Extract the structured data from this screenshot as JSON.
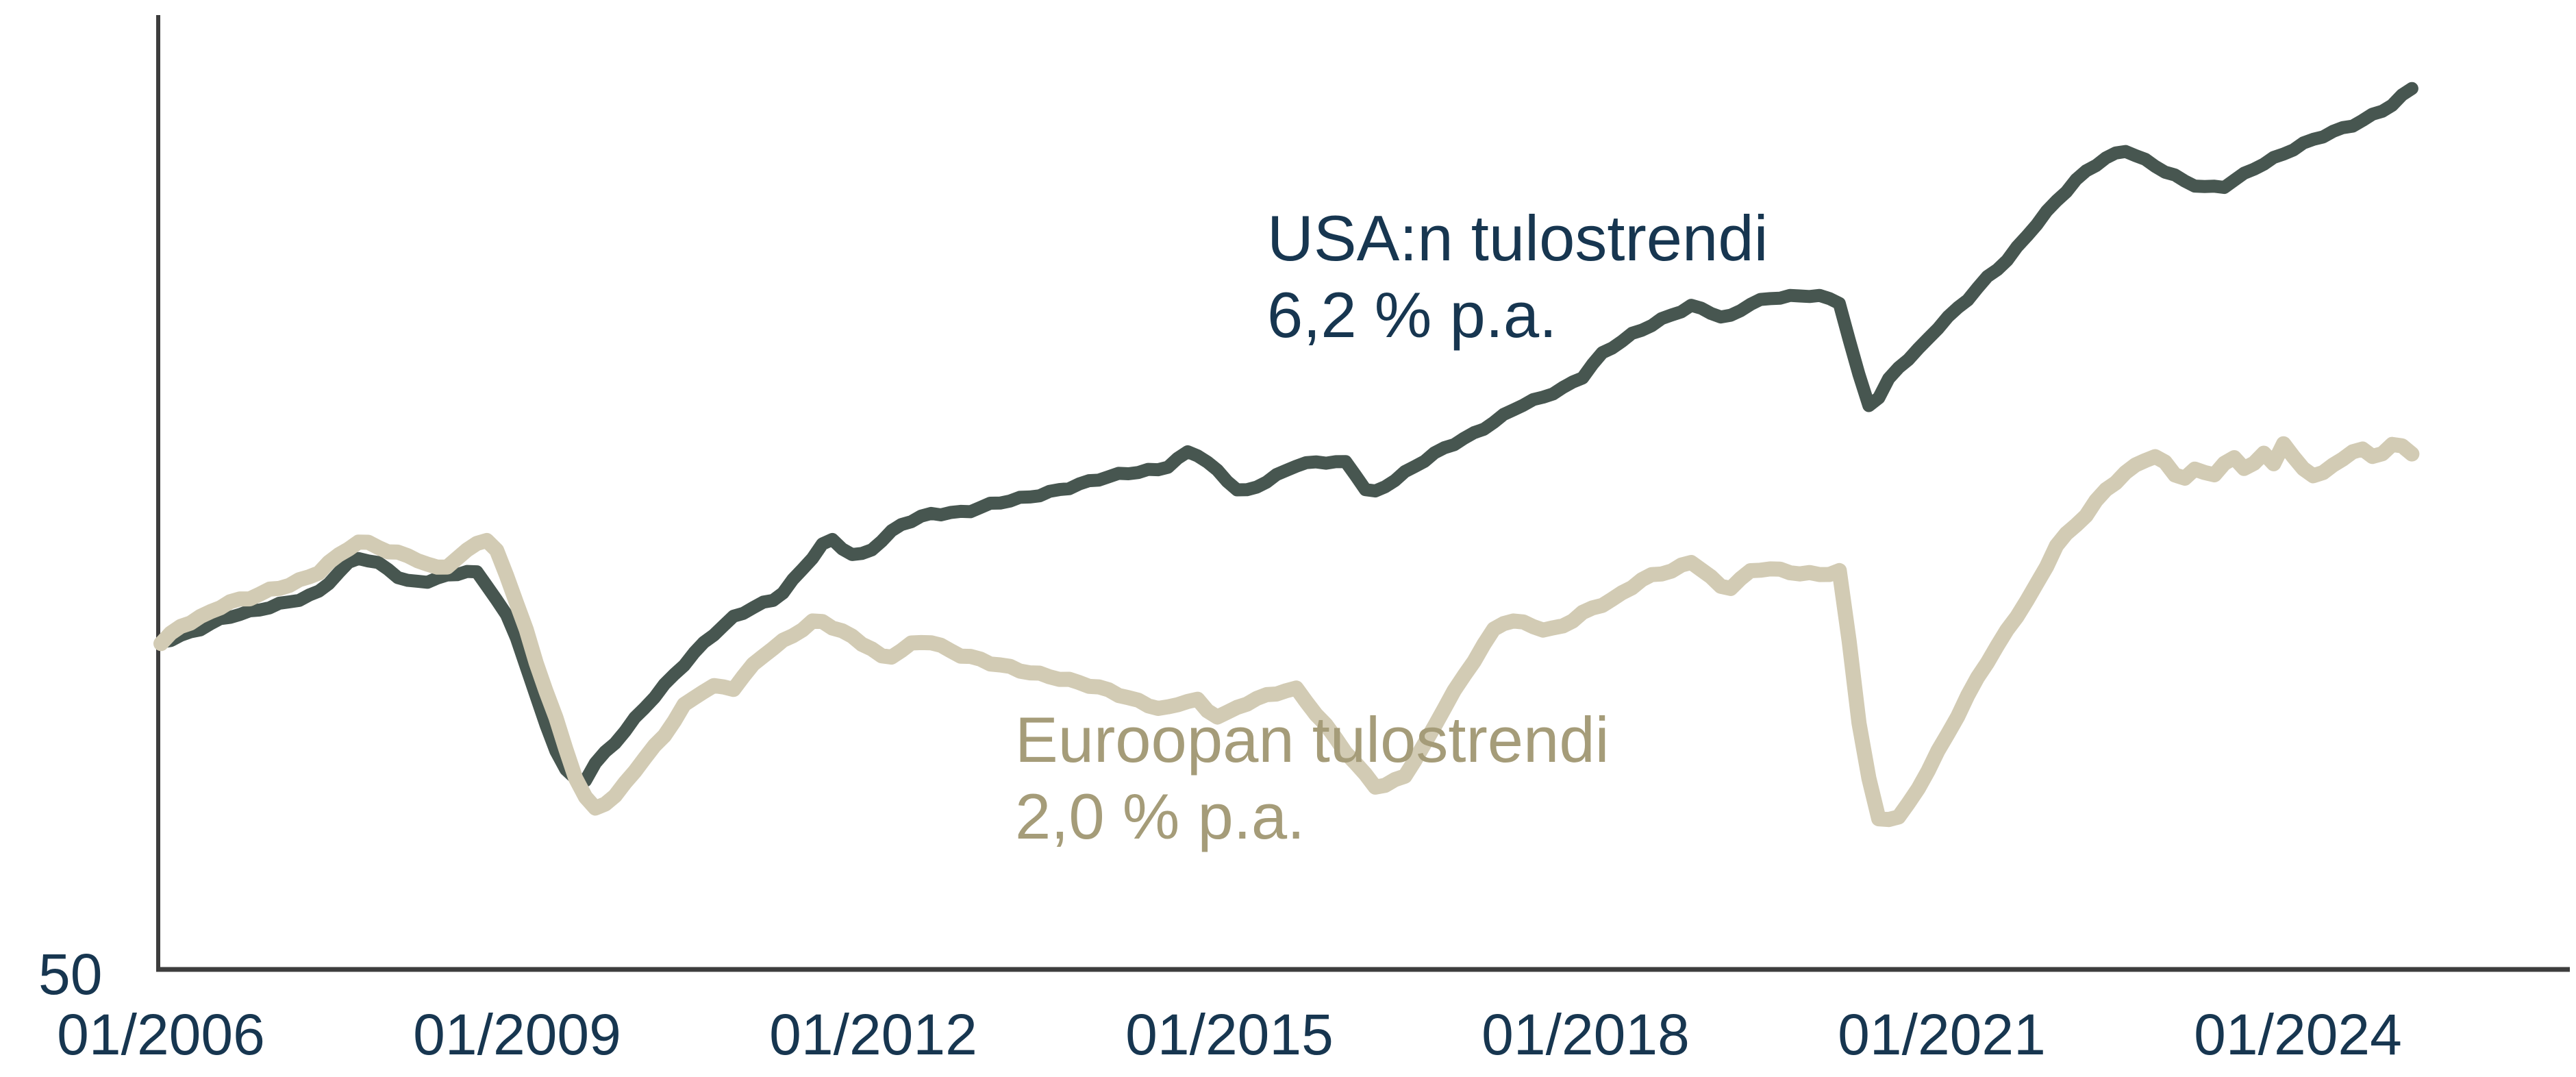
{
  "page": {
    "background_color": "#ffffff",
    "title": ""
  },
  "colors": {
    "axis_line": "#3d3d3d",
    "tick_text": "#173650",
    "usa_line": "#475650",
    "usa_text": "#173650",
    "europe_line": "#d2cbb4",
    "europe_text": "#a59c79"
  },
  "chart_data": {
    "type": "line",
    "title": "",
    "xlabel": "",
    "ylabel": "",
    "grid": false,
    "legend_position": "inline-annotations",
    "x_axis": {
      "tick_labels": [
        "01/2006",
        "01/2009",
        "01/2012",
        "01/2015",
        "01/2018",
        "01/2021",
        "01/2024"
      ],
      "tick_positions": [
        2006,
        2009,
        2012,
        2015,
        2018,
        2021,
        2024
      ],
      "range": [
        2006.0,
        2025.0
      ]
    },
    "y_axis": {
      "tick_labels": [
        "50"
      ],
      "bottom_value": 50,
      "scale": "log",
      "start_index": 100
    },
    "series": [
      {
        "name": "USA",
        "annotation_line1": "USA:n tulostrendi",
        "annotation_line2": "6,2 % p.a.",
        "color": "#475650",
        "label_color": "#173650",
        "stroke_width": 19,
        "points": [
          [
            2006.0,
            100.4
          ],
          [
            2006.16,
            101.8
          ],
          [
            2006.36,
            103.8
          ],
          [
            2006.55,
            105.8
          ],
          [
            2006.74,
            106.8
          ],
          [
            2006.93,
            108.4
          ],
          [
            2007.13,
            110.0
          ],
          [
            2007.32,
            111.6
          ],
          [
            2007.51,
            116.6
          ],
          [
            2007.64,
            120.3
          ],
          [
            2007.8,
            119.0
          ],
          [
            2007.89,
            118.1
          ],
          [
            2008.05,
            114.5
          ],
          [
            2008.28,
            114.5
          ],
          [
            2008.44,
            115.8
          ],
          [
            2008.59,
            116.6
          ],
          [
            2008.68,
            116.2
          ],
          [
            2008.87,
            108.4
          ],
          [
            2008.97,
            103.4
          ],
          [
            2009.07,
            96.1
          ],
          [
            2009.16,
            89.3
          ],
          [
            2009.26,
            83.0
          ],
          [
            2009.36,
            78.0
          ],
          [
            2009.45,
            74.8
          ],
          [
            2009.57,
            74.6
          ],
          [
            2009.65,
            77.3
          ],
          [
            2009.84,
            81.5
          ],
          [
            2010.03,
            86.3
          ],
          [
            2010.41,
            95.7
          ],
          [
            2010.62,
            101.5
          ],
          [
            2010.82,
            106.0
          ],
          [
            2010.99,
            108.3
          ],
          [
            2011.19,
            110.0
          ],
          [
            2011.39,
            116.6
          ],
          [
            2011.6,
            125.0
          ],
          [
            2011.63,
            125.6
          ],
          [
            2011.86,
            120.4
          ],
          [
            2012.0,
            122.7
          ],
          [
            2012.23,
            128.9
          ],
          [
            2012.49,
            132.3
          ],
          [
            2012.78,
            132.8
          ],
          [
            2013.0,
            134.7
          ],
          [
            2013.26,
            136.5
          ],
          [
            2013.59,
            139.5
          ],
          [
            2013.88,
            142.0
          ],
          [
            2014.16,
            144.1
          ],
          [
            2014.45,
            145.8
          ],
          [
            2014.68,
            151.6
          ],
          [
            2014.88,
            145.1
          ],
          [
            2015.1,
            137.8
          ],
          [
            2015.32,
            142.0
          ],
          [
            2015.55,
            146.7
          ],
          [
            2015.78,
            147.4
          ],
          [
            2016.0,
            147.2
          ],
          [
            2016.18,
            137.5
          ],
          [
            2016.47,
            144.1
          ],
          [
            2016.76,
            150.7
          ],
          [
            2017.05,
            156.7
          ],
          [
            2017.24,
            161.4
          ],
          [
            2017.43,
            166.3
          ],
          [
            2017.62,
            168.8
          ],
          [
            2017.82,
            172.8
          ],
          [
            2018.0,
            178.1
          ],
          [
            2018.1,
            185.0
          ],
          [
            2018.2,
            188.4
          ],
          [
            2018.39,
            193.7
          ],
          [
            2018.59,
            198.4
          ],
          [
            2018.78,
            203.4
          ],
          [
            2018.89,
            206.2
          ],
          [
            2019.03,
            204.5
          ],
          [
            2019.18,
            200.3
          ],
          [
            2019.36,
            206.2
          ],
          [
            2019.55,
            209.2
          ],
          [
            2019.74,
            210.3
          ],
          [
            2019.93,
            211.5
          ],
          [
            2020.15,
            207.7
          ],
          [
            2020.25,
            185.0
          ],
          [
            2020.34,
            172.0
          ],
          [
            2020.41,
            163.9
          ],
          [
            2020.51,
            172.8
          ],
          [
            2020.61,
            179.7
          ],
          [
            2020.8,
            187.8
          ],
          [
            2020.99,
            198.4
          ],
          [
            2021.19,
            207.4
          ],
          [
            2021.38,
            218.3
          ],
          [
            2021.57,
            228.5
          ],
          [
            2021.76,
            243.4
          ],
          [
            2021.95,
            257.0
          ],
          [
            2022.16,
            271.2
          ],
          [
            2022.36,
            281.8
          ],
          [
            2022.56,
            288.0
          ],
          [
            2022.88,
            275.2
          ],
          [
            2023.08,
            267.4
          ],
          [
            2023.22,
            265.1
          ],
          [
            2023.37,
            265.8
          ],
          [
            2023.63,
            277.2
          ],
          [
            2023.92,
            286.6
          ],
          [
            2024.2,
            296.0
          ],
          [
            2024.49,
            305.0
          ],
          [
            2024.78,
            316.0
          ],
          [
            2024.96,
            327.7
          ]
        ]
      },
      {
        "name": "Eurooppa",
        "annotation_line1": "Euroopan tulostrendi",
        "annotation_line2": "2,0 % p.a.",
        "color": "#d2cbb4",
        "label_color": "#a59c79",
        "stroke_width": 22,
        "points": [
          [
            2006.0,
            100.4
          ],
          [
            2006.16,
            104.0
          ],
          [
            2006.36,
            106.1
          ],
          [
            2006.55,
            108.9
          ],
          [
            2006.74,
            110.3
          ],
          [
            2006.93,
            112.5
          ],
          [
            2007.13,
            114.1
          ],
          [
            2007.32,
            116.3
          ],
          [
            2007.51,
            121.0
          ],
          [
            2007.64,
            124.2
          ],
          [
            2007.8,
            124.1
          ],
          [
            2007.89,
            122.2
          ],
          [
            2008.09,
            121.0
          ],
          [
            2008.28,
            117.5
          ],
          [
            2008.44,
            118.1
          ],
          [
            2008.57,
            121.9
          ],
          [
            2008.68,
            125.0
          ],
          [
            2008.78,
            124.8
          ],
          [
            2008.87,
            119.8
          ],
          [
            2008.97,
            111.3
          ],
          [
            2009.07,
            103.4
          ],
          [
            2009.16,
            96.1
          ],
          [
            2009.26,
            89.3
          ],
          [
            2009.36,
            83.0
          ],
          [
            2009.45,
            77.3
          ],
          [
            2009.55,
            72.5
          ],
          [
            2009.66,
            70.4
          ],
          [
            2009.84,
            72.5
          ],
          [
            2010.03,
            77.3
          ],
          [
            2010.22,
            81.5
          ],
          [
            2010.41,
            87.7
          ],
          [
            2010.62,
            91.6
          ],
          [
            2010.82,
            91.0
          ],
          [
            2011.05,
            97.1
          ],
          [
            2011.34,
            102.2
          ],
          [
            2011.53,
            105.7
          ],
          [
            2011.8,
            101.9
          ],
          [
            2012.0,
            98.5
          ],
          [
            2012.1,
            96.5
          ],
          [
            2012.32,
            100.0
          ],
          [
            2012.46,
            101.0
          ],
          [
            2012.72,
            97.8
          ],
          [
            2013.0,
            95.8
          ],
          [
            2013.52,
            93.3
          ],
          [
            2014.0,
            90.3
          ],
          [
            2014.45,
            87.0
          ],
          [
            2014.71,
            89.0
          ],
          [
            2014.86,
            85.4
          ],
          [
            2015.0,
            86.4
          ],
          [
            2015.2,
            89.0
          ],
          [
            2015.55,
            91.0
          ],
          [
            2015.81,
            83.9
          ],
          [
            2016.04,
            78.0
          ],
          [
            2016.25,
            73.5
          ],
          [
            2016.47,
            75.2
          ],
          [
            2016.64,
            80.3
          ],
          [
            2016.82,
            87.7
          ],
          [
            2017.05,
            96.4
          ],
          [
            2017.22,
            103.0
          ],
          [
            2017.34,
            105.3
          ],
          [
            2017.57,
            103.7
          ],
          [
            2017.68,
            102.7
          ],
          [
            2017.82,
            104.2
          ],
          [
            2018.01,
            107.6
          ],
          [
            2018.26,
            110.3
          ],
          [
            2018.49,
            114.9
          ],
          [
            2018.72,
            117.1
          ],
          [
            2018.91,
            119.6
          ],
          [
            2019.07,
            114.9
          ],
          [
            2019.18,
            111.9
          ],
          [
            2019.41,
            117.0
          ],
          [
            2019.53,
            117.5
          ],
          [
            2019.76,
            116.7
          ],
          [
            2019.99,
            116.1
          ],
          [
            2020.16,
            116.7
          ],
          [
            2020.25,
            93.0
          ],
          [
            2020.34,
            79.1
          ],
          [
            2020.46,
            68.6
          ],
          [
            2020.66,
            69.3
          ],
          [
            2020.82,
            74.2
          ],
          [
            2021.08,
            83.5
          ],
          [
            2021.34,
            94.6
          ],
          [
            2021.6,
            105.1
          ],
          [
            2021.85,
            115.8
          ],
          [
            2021.95,
            123.0
          ],
          [
            2022.19,
            130.6
          ],
          [
            2022.35,
            138.0
          ],
          [
            2022.54,
            144.3
          ],
          [
            2022.71,
            148.5
          ],
          [
            2022.82,
            149.6
          ],
          [
            2023.01,
            141.6
          ],
          [
            2023.11,
            144.3
          ],
          [
            2023.18,
            146.0
          ],
          [
            2023.25,
            142.4
          ],
          [
            2023.39,
            147.5
          ],
          [
            2023.48,
            149.4
          ],
          [
            2023.57,
            145.1
          ],
          [
            2023.71,
            150.1
          ],
          [
            2023.79,
            146.8
          ],
          [
            2023.88,
            153.4
          ],
          [
            2023.97,
            148.1
          ],
          [
            2024.09,
            144.0
          ],
          [
            2024.18,
            143.0
          ],
          [
            2024.28,
            146.2
          ],
          [
            2024.33,
            148.3
          ],
          [
            2024.46,
            150.8
          ],
          [
            2024.55,
            151.7
          ],
          [
            2024.61,
            150.1
          ],
          [
            2024.68,
            148.8
          ],
          [
            2024.77,
            152.3
          ],
          [
            2024.86,
            153.4
          ],
          [
            2024.96,
            150.1
          ]
        ]
      }
    ]
  }
}
